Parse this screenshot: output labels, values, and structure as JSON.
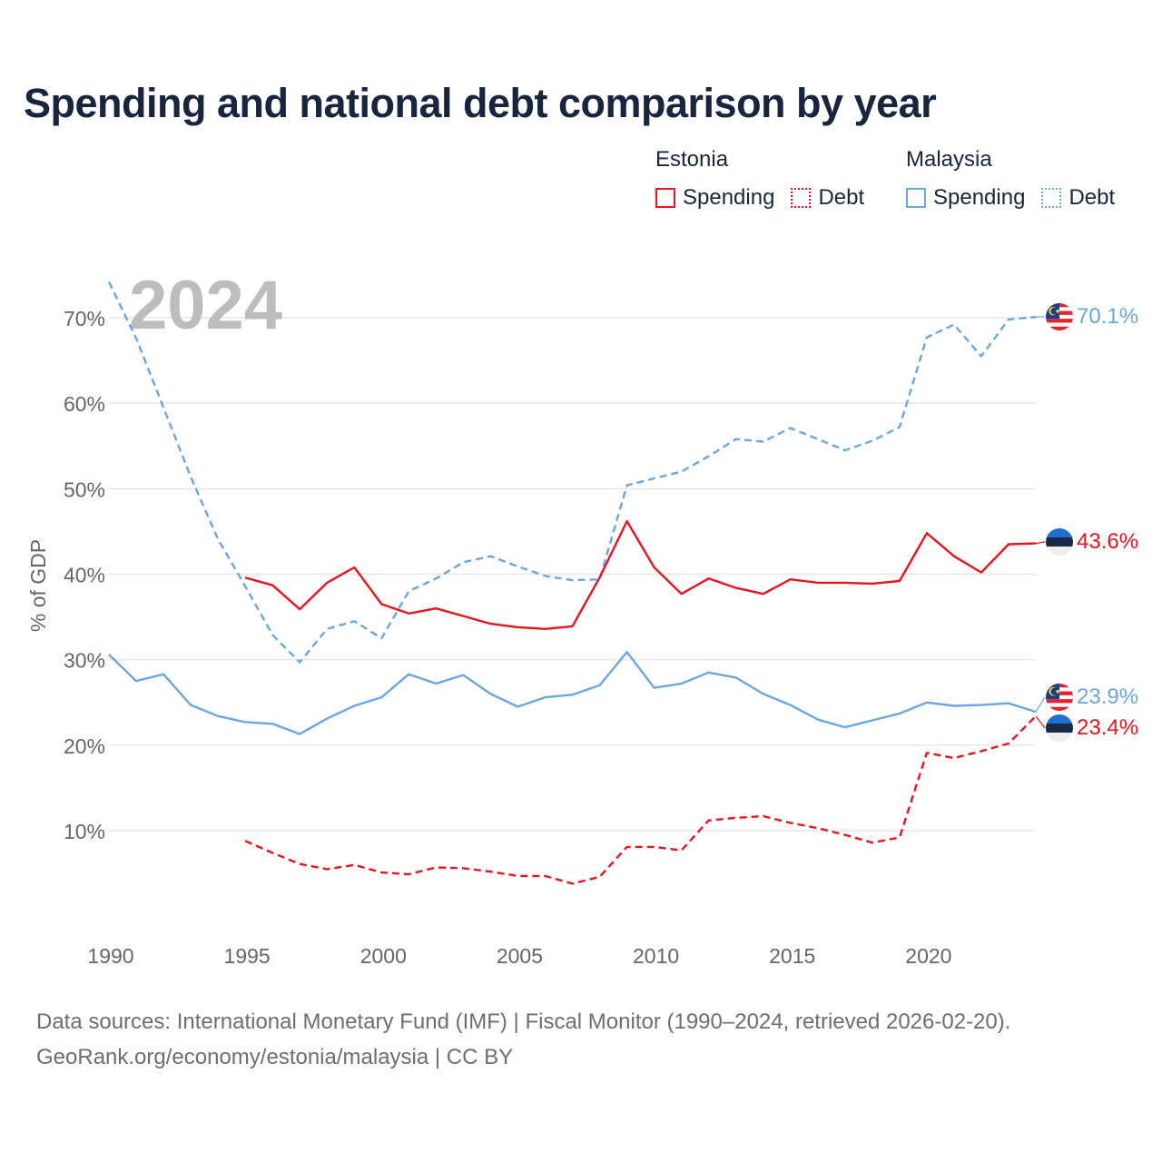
{
  "title": "Spending and national debt comparison by year",
  "legend": {
    "groups": [
      {
        "country": "Estonia",
        "color": "#e8141f",
        "items": [
          {
            "label": "Spending",
            "style": "solid"
          },
          {
            "label": "Debt",
            "style": "dotted"
          }
        ]
      },
      {
        "country": "Malaysia",
        "color": "#6aa6e2",
        "items": [
          {
            "label": "Spending",
            "style": "solid"
          },
          {
            "label": "Debt",
            "style": "dotted"
          }
        ]
      }
    ]
  },
  "footer": {
    "line1": "Data sources: International Monetary Fund (IMF) | Fiscal Monitor (1990–2024, retrieved 2026-02-20).",
    "line2": "GeoRank.org/economy/estonia/malaysia | CC BY"
  },
  "chart_data": {
    "type": "line",
    "title": "Spending and national debt comparison by year",
    "year_label": "2024",
    "ylabel": "% of GDP",
    "xlabel": "",
    "xlim": [
      1990,
      2024
    ],
    "ylim": [
      0,
      75
    ],
    "x_ticks": [
      1990,
      1995,
      2000,
      2005,
      2010,
      2015,
      2020
    ],
    "x_tick_labels": [
      "1990",
      "1995",
      "2000",
      "2005",
      "2010",
      "2015",
      "2020"
    ],
    "y_ticks": [
      10,
      20,
      30,
      40,
      50,
      60,
      70
    ],
    "y_tick_labels": [
      "10%",
      "20%",
      "30%",
      "40%",
      "50%",
      "60%",
      "70%"
    ],
    "grid": true,
    "series": [
      {
        "name": "Malaysia Debt",
        "country": "Malaysia",
        "metric": "Debt",
        "color": "#6aa6e2",
        "dash": "dashed",
        "end_label": "70.1%",
        "x": [
          1990,
          1991,
          1992,
          1993,
          1994,
          1995,
          1996,
          1997,
          1998,
          1999,
          2000,
          2001,
          2002,
          2003,
          2004,
          2005,
          2006,
          2007,
          2008,
          2009,
          2010,
          2011,
          2012,
          2013,
          2014,
          2015,
          2016,
          2017,
          2018,
          2019,
          2020,
          2021,
          2022,
          2023,
          2024
        ],
        "values": [
          74.2,
          67.6,
          59.5,
          51.4,
          44.1,
          38.6,
          32.9,
          29.7,
          33.6,
          34.5,
          32.5,
          38.0,
          39.5,
          41.4,
          42.1,
          40.9,
          39.8,
          39.3,
          39.4,
          50.4,
          51.2,
          52.0,
          53.8,
          55.8,
          55.5,
          57.1,
          55.8,
          54.5,
          55.6,
          57.2,
          67.7,
          69.2,
          65.5,
          69.8,
          70.1
        ]
      },
      {
        "name": "Estonia Spending",
        "country": "Estonia",
        "metric": "Spending",
        "color": "#e8141f",
        "dash": "solid",
        "end_label": "43.6%",
        "x": [
          1995,
          1996,
          1997,
          1998,
          1999,
          2000,
          2001,
          2002,
          2003,
          2004,
          2005,
          2006,
          2007,
          2008,
          2009,
          2010,
          2011,
          2012,
          2013,
          2014,
          2015,
          2016,
          2017,
          2018,
          2019,
          2020,
          2021,
          2022,
          2023,
          2024
        ],
        "values": [
          39.6,
          38.7,
          35.9,
          39.0,
          40.8,
          36.5,
          35.4,
          36.0,
          35.1,
          34.2,
          33.8,
          33.6,
          33.9,
          39.6,
          46.2,
          40.8,
          37.7,
          39.5,
          38.4,
          37.7,
          39.4,
          39.0,
          39.0,
          38.9,
          39.2,
          44.8,
          42.1,
          40.2,
          43.5,
          43.6
        ]
      },
      {
        "name": "Malaysia Spending",
        "country": "Malaysia",
        "metric": "Spending",
        "color": "#6aa6e2",
        "dash": "solid",
        "end_label": "23.9%",
        "x": [
          1990,
          1991,
          1992,
          1993,
          1994,
          1995,
          1996,
          1997,
          1998,
          1999,
          2000,
          2001,
          2002,
          2003,
          2004,
          2005,
          2006,
          2007,
          2008,
          2009,
          2010,
          2011,
          2012,
          2013,
          2014,
          2015,
          2016,
          2017,
          2018,
          2019,
          2020,
          2021,
          2022,
          2023,
          2024
        ],
        "values": [
          30.6,
          27.5,
          28.3,
          24.7,
          23.4,
          22.7,
          22.5,
          21.3,
          23.1,
          24.6,
          25.6,
          28.3,
          27.2,
          28.2,
          26.0,
          24.5,
          25.6,
          25.9,
          27.0,
          30.9,
          26.7,
          27.2,
          28.5,
          27.9,
          26.0,
          24.7,
          23.0,
          22.1,
          22.9,
          23.7,
          25.0,
          24.6,
          24.7,
          24.9,
          23.9
        ]
      },
      {
        "name": "Estonia Debt",
        "country": "Estonia",
        "metric": "Debt",
        "color": "#e8141f",
        "dash": "dashed",
        "end_label": "23.4%",
        "x": [
          1995,
          1996,
          1997,
          1998,
          1999,
          2000,
          2001,
          2002,
          2003,
          2004,
          2005,
          2006,
          2007,
          2008,
          2009,
          2010,
          2011,
          2012,
          2013,
          2014,
          2015,
          2016,
          2017,
          2018,
          2019,
          2020,
          2021,
          2022,
          2023,
          2024
        ],
        "values": [
          8.8,
          7.4,
          6.1,
          5.5,
          6.0,
          5.1,
          4.9,
          5.7,
          5.6,
          5.2,
          4.7,
          4.7,
          3.8,
          4.6,
          8.1,
          8.1,
          7.7,
          11.2,
          11.5,
          11.7,
          10.9,
          10.3,
          9.5,
          8.6,
          9.2,
          19.1,
          18.5,
          19.3,
          20.2,
          23.4
        ]
      }
    ]
  }
}
